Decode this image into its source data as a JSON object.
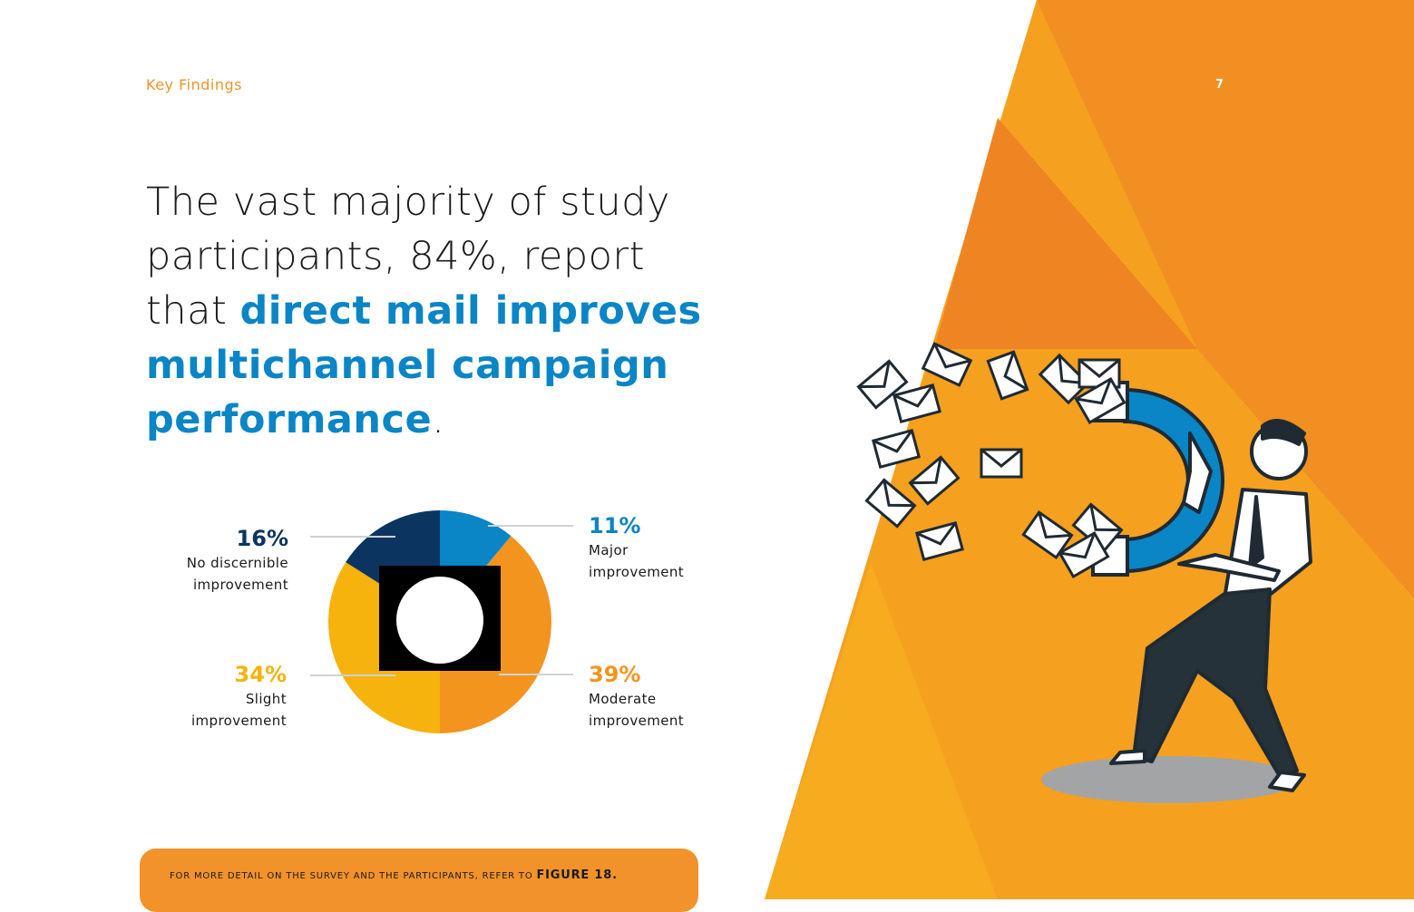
{
  "header": {
    "section_label": "Key Findings",
    "page_number": "7"
  },
  "headline": {
    "part1": "The vast majority of study participants, 84%, report that ",
    "highlight": "direct mail improves multichannel campaign performance",
    "end": "."
  },
  "footer": {
    "text": "For more detail on the survey and the participants, refer to ",
    "ref": "FIGURE 18."
  },
  "colors": {
    "accent_orange": "#f2922a",
    "blue": "#0a85c6",
    "navy": "#0b3560",
    "yellow": "#f6b20d",
    "orange_slice": "#f3941f"
  },
  "chart_data": {
    "type": "pie",
    "slices": [
      {
        "label": "Major improvement",
        "value": 11,
        "pct_label": "11%",
        "color": "#0a85c6",
        "lines": [
          "Major",
          "improvement"
        ]
      },
      {
        "label": "Moderate improvement",
        "value": 39,
        "pct_label": "39%",
        "color": "#f3941f",
        "lines": [
          "Moderate",
          "improvement"
        ]
      },
      {
        "label": "Slight improvement",
        "value": 34,
        "pct_label": "34%",
        "color": "#f6b20d",
        "lines": [
          "Slight",
          "improvement"
        ]
      },
      {
        "label": "No discernible improvement",
        "value": 16,
        "pct_label": "16%",
        "color": "#0b3560",
        "lines": [
          "No discernible",
          "improvement"
        ]
      }
    ]
  }
}
